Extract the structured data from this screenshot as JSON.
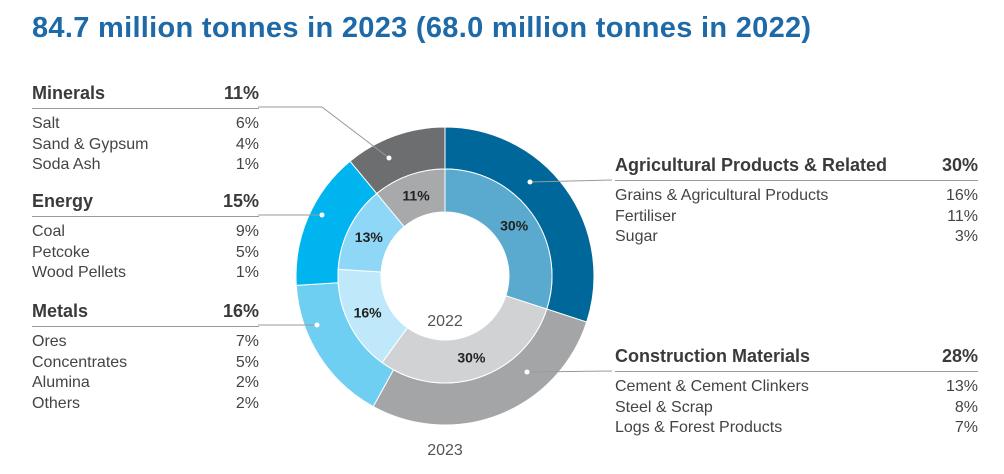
{
  "title": "84.7 million tonnes in 2023 (68.0 million tonnes in 2022)",
  "chart_data": {
    "type": "donut",
    "inner_ring_label": "2022",
    "outer_ring_label": "2023",
    "categories": [
      "Agricultural Products & Related",
      "Construction Materials",
      "Metals",
      "Energy",
      "Minerals"
    ],
    "colors": {
      "outer": [
        "#00679a",
        "#a4a5a7",
        "#6fcff2",
        "#00b5ef",
        "#6d6e70"
      ],
      "inner": [
        "#5aa9cf",
        "#d1d2d3",
        "#bfe9fa",
        "#8fd7f6",
        "#a8a9ab"
      ]
    },
    "series": [
      {
        "name": "2023",
        "values": [
          30,
          28,
          16,
          15,
          11
        ]
      },
      {
        "name": "2022",
        "values": [
          30,
          30,
          16,
          13,
          11
        ]
      }
    ],
    "breakdown": [
      {
        "name": "Agricultural Products & Related",
        "pct": "30%",
        "items": [
          {
            "name": "Grains & Agricultural Products",
            "pct": "16%"
          },
          {
            "name": "Fertiliser",
            "pct": "11%"
          },
          {
            "name": "Sugar",
            "pct": "3%"
          }
        ]
      },
      {
        "name": "Construction Materials",
        "pct": "28%",
        "items": [
          {
            "name": "Cement & Cement Clinkers",
            "pct": "13%"
          },
          {
            "name": "Steel & Scrap",
            "pct": "8%"
          },
          {
            "name": "Logs & Forest Products",
            "pct": "7%"
          }
        ]
      },
      {
        "name": "Metals",
        "pct": "16%",
        "items": [
          {
            "name": "Ores",
            "pct": "7%"
          },
          {
            "name": "Concentrates",
            "pct": "5%"
          },
          {
            "name": "Alumina",
            "pct": "2%"
          },
          {
            "name": "Others",
            "pct": "2%"
          }
        ]
      },
      {
        "name": "Energy",
        "pct": "15%",
        "items": [
          {
            "name": "Coal",
            "pct": "9%"
          },
          {
            "name": "Petcoke",
            "pct": "5%"
          },
          {
            "name": "Wood Pellets",
            "pct": "1%"
          }
        ]
      },
      {
        "name": "Minerals",
        "pct": "11%",
        "items": [
          {
            "name": "Salt",
            "pct": "6%"
          },
          {
            "name": "Sand & Gypsum",
            "pct": "4%"
          },
          {
            "name": "Soda Ash",
            "pct": "1%"
          }
        ]
      }
    ]
  }
}
